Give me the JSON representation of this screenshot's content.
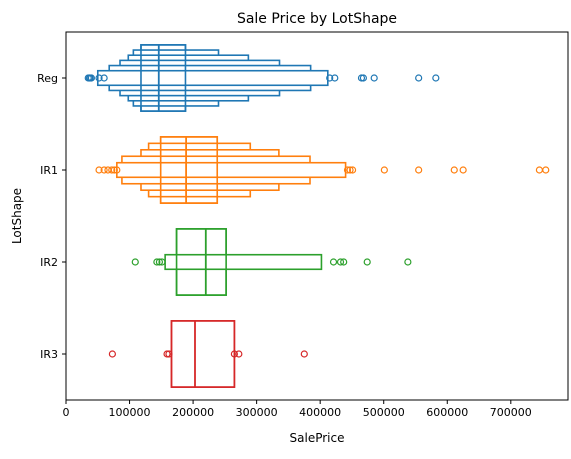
{
  "chart_data": {
    "type": "boxen",
    "title": "Sale Price by LotShape",
    "xlabel": "SalePrice",
    "ylabel": "LotShape",
    "xlim": [
      0,
      790000
    ],
    "x_ticks": [
      0,
      100000,
      200000,
      300000,
      400000,
      500000,
      600000,
      700000
    ],
    "x_tick_labels": [
      "0",
      "100000",
      "200000",
      "300000",
      "400000",
      "500000",
      "600000",
      "700000"
    ],
    "grid": false,
    "categories": [
      "Reg",
      "IR1",
      "IR2",
      "IR3"
    ],
    "series": [
      {
        "category": "Reg",
        "color": "#1f77b4",
        "median": 146000,
        "levels": [
          [
            118000,
            188000
          ],
          [
            106000,
            240000
          ],
          [
            98000,
            287000
          ],
          [
            85000,
            336000
          ],
          [
            68000,
            385000
          ],
          [
            50000,
            412000
          ]
        ],
        "outliers": [
          35000,
          37000,
          38000,
          40000,
          52000,
          60000,
          415000,
          423000,
          465000,
          468000,
          485000,
          555000,
          582000
        ]
      },
      {
        "category": "IR1",
        "color": "#ff7f0e",
        "median": 189000,
        "levels": [
          [
            149000,
            238000
          ],
          [
            130000,
            290000
          ],
          [
            118000,
            335000
          ],
          [
            88000,
            384000
          ],
          [
            80000,
            440000
          ]
        ],
        "outliers": [
          52000,
          60000,
          66000,
          72000,
          76000,
          80000,
          443000,
          447000,
          451000,
          501000,
          555000,
          611000,
          625000,
          745000,
          755000
        ]
      },
      {
        "category": "IR2",
        "color": "#2ca02c",
        "median": 220000,
        "levels": [
          [
            174000,
            252000
          ],
          [
            156000,
            402000
          ]
        ],
        "outliers": [
          109000,
          143000,
          147000,
          151000,
          421000,
          432000,
          437000,
          474000,
          538000
        ]
      },
      {
        "category": "IR3",
        "color": "#d62728",
        "median": 203000,
        "levels": [
          [
            166000,
            265000
          ]
        ],
        "outliers": [
          73000,
          159000,
          162000,
          265000,
          272000,
          375000
        ]
      }
    ]
  }
}
